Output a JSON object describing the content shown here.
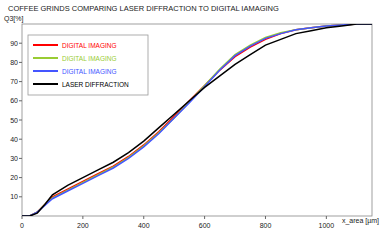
{
  "chart_data": {
    "type": "line",
    "title": "COFFEE GRINDS COMPARING LASER DIFFRACTION TO DIGITAL IAMAGING",
    "y_label": "Q3[%]",
    "x_label": "x_area [µm]",
    "x": [
      0,
      25,
      50,
      75,
      100,
      150,
      200,
      250,
      300,
      350,
      400,
      450,
      500,
      550,
      600,
      650,
      700,
      750,
      800,
      850,
      900,
      950,
      1000,
      1050,
      1100,
      1150
    ],
    "series": [
      {
        "name": "DIGITAL IMAGING",
        "color": "#ff0000",
        "values": [
          0,
          0,
          2,
          6,
          10,
          14,
          18,
          22,
          26,
          31,
          37,
          44,
          52,
          60,
          68,
          76,
          83,
          88,
          92,
          95,
          97,
          98,
          99,
          99.5,
          100,
          100
        ]
      },
      {
        "name": "DIGITAL IMAGING",
        "color": "#99cc33",
        "values": [
          0,
          0,
          2,
          6,
          9.5,
          13.5,
          17.5,
          21.5,
          25.5,
          30.5,
          36.5,
          43.5,
          51,
          59.5,
          68,
          76.5,
          84,
          89,
          93,
          95.5,
          97,
          98,
          99,
          99.5,
          100,
          100
        ]
      },
      {
        "name": "DIGITAL IMAGING",
        "color": "#4455ff",
        "values": [
          0,
          0,
          2,
          5.5,
          9,
          13,
          17,
          21,
          25,
          30,
          36,
          43,
          51,
          59,
          67.5,
          76,
          83.5,
          88.5,
          92.5,
          95,
          97,
          98,
          99,
          99.5,
          100,
          100
        ]
      },
      {
        "name": "LASER DIFFRACTION",
        "color": "#000000",
        "values": [
          0,
          0,
          1.5,
          6,
          11,
          16,
          20,
          24,
          28,
          33,
          39,
          46,
          53,
          60,
          67,
          73,
          79,
          84,
          89,
          92,
          95,
          96.5,
          98,
          99,
          100,
          100
        ]
      }
    ],
    "xlim": [
      0,
      1150
    ],
    "xticks": [
      0,
      200,
      400,
      600,
      800,
      1000
    ],
    "ylim": [
      0,
      100
    ],
    "yticks": [
      10,
      20,
      30,
      40,
      50,
      60,
      70,
      80,
      90
    ],
    "grid": false,
    "legend": "upper left"
  }
}
